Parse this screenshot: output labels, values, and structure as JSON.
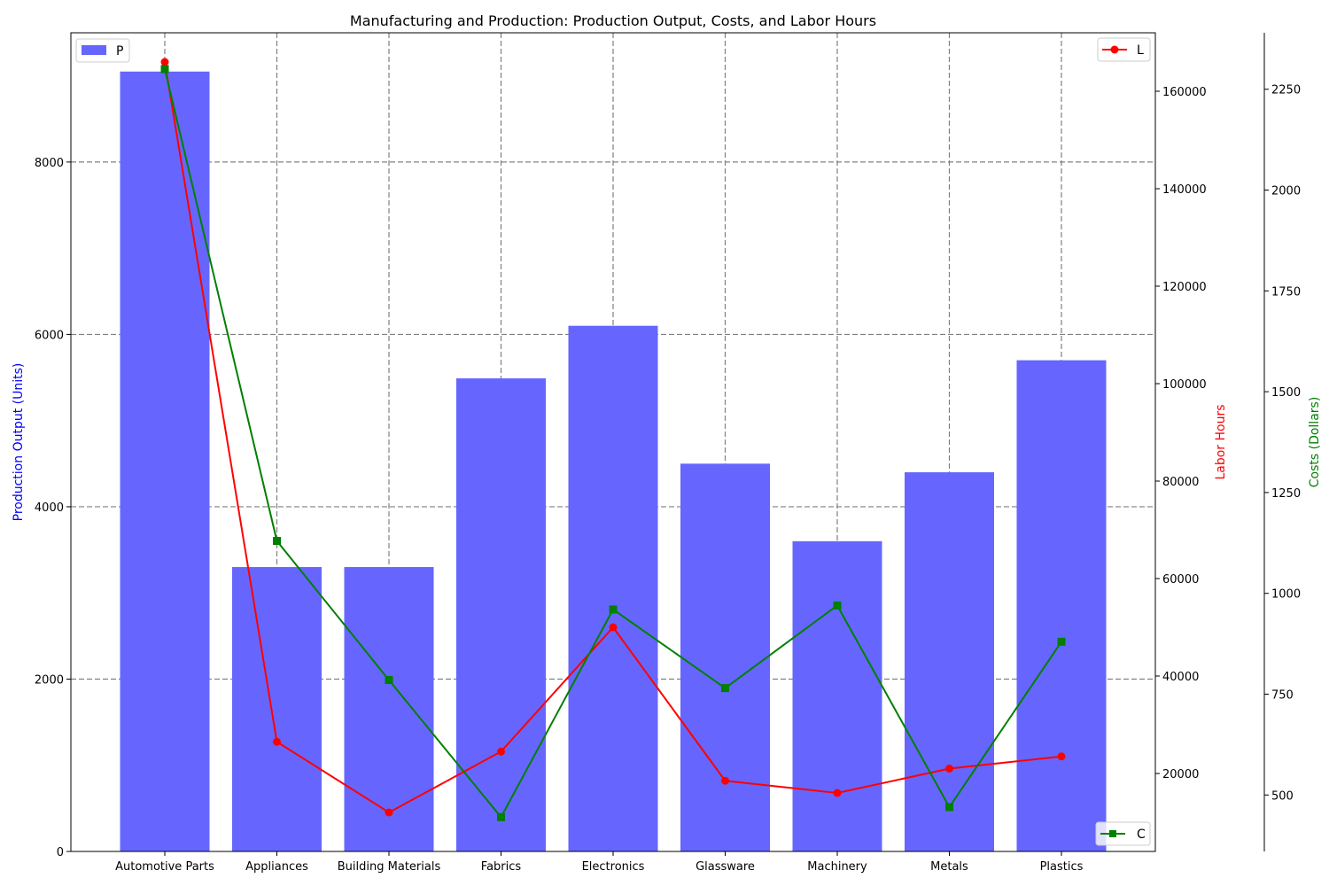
{
  "chart_data": {
    "type": "bar",
    "title": "Manufacturing and Production: Production Output, Costs, and Labor Hours",
    "categories": [
      "Automotive Parts",
      "Appliances",
      "Building Materials",
      "Fabrics",
      "Electronics",
      "Glassware",
      "Machinery",
      "Metals",
      "Plastics"
    ],
    "xlabel": "",
    "grid": true,
    "axes": {
      "left": {
        "label": "Production Output (Units)",
        "ylim": [
          0,
          9500
        ],
        "ticks": [
          0,
          2000,
          4000,
          6000,
          8000
        ],
        "color": "#0000ff"
      },
      "right": {
        "label": "Labor Hours",
        "ylim": [
          4000,
          172000
        ],
        "ticks": [
          20000,
          40000,
          60000,
          80000,
          100000,
          120000,
          140000,
          160000
        ],
        "color": "#ff0000"
      },
      "right_outer": {
        "label": "Costs (Dollars)",
        "ylim": [
          360,
          2390
        ],
        "ticks": [
          500,
          750,
          1000,
          1250,
          1500,
          1750,
          2000,
          2250
        ],
        "color": "#008000"
      }
    },
    "series": [
      {
        "name": "P",
        "type": "bar",
        "axis": "left",
        "color": "#6666ff",
        "legend": "top-left",
        "values": [
          9050,
          3300,
          3300,
          5490,
          6100,
          4500,
          3600,
          4400,
          5700
        ]
      },
      {
        "name": "L",
        "type": "line",
        "axis": "right",
        "color": "#ff0000",
        "marker": "circle",
        "legend": "top-right",
        "values": [
          166000,
          26500,
          12000,
          24500,
          50000,
          18500,
          16000,
          21000,
          23500
        ]
      },
      {
        "name": "C",
        "type": "line",
        "axis": "right_outer",
        "color": "#008000",
        "marker": "square",
        "legend": "bottom-right",
        "values": [
          2300,
          1130,
          785,
          445,
          960,
          765,
          970,
          470,
          880
        ]
      }
    ]
  }
}
